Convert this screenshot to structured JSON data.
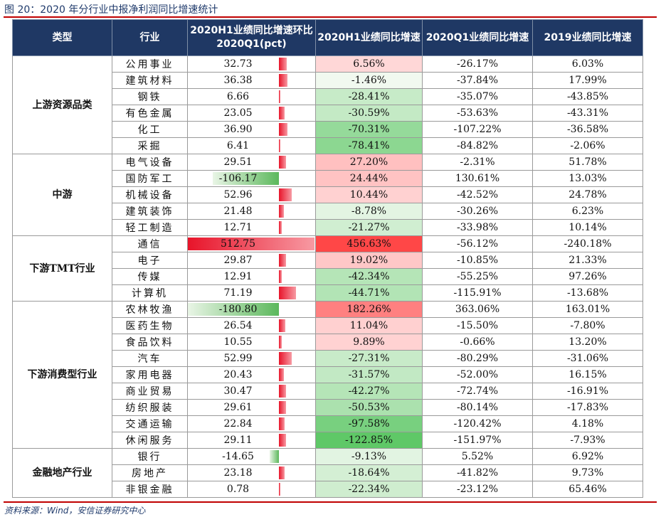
{
  "title": "图 20：2020 年分行业中报净利润同比增速统计",
  "source": "资料来源：Wind，安信证券研究中心",
  "headers": {
    "type": "类型",
    "industry": "行业",
    "qoq": "2020H1业绩同比增速环比2020Q1(pct)",
    "h1": "2020H1业绩同比增速",
    "q1": "2020Q1业绩同比增速",
    "y2019": "2019业绩同比增速"
  },
  "groups": [
    {
      "name": "上游资源品类",
      "rows": [
        {
          "industry": "公用事业",
          "qoq": "32.73",
          "qoq_v": 32.73,
          "h1": "6.56%",
          "h1_v": 6.56,
          "q1": "-26.17%",
          "y2019": "6.03%"
        },
        {
          "industry": "建筑材料",
          "qoq": "36.38",
          "qoq_v": 36.38,
          "h1": "-1.46%",
          "h1_v": -1.46,
          "q1": "-37.84%",
          "y2019": "17.99%"
        },
        {
          "industry": "钢铁",
          "qoq": "6.66",
          "qoq_v": 6.66,
          "h1": "-28.41%",
          "h1_v": -28.41,
          "q1": "-35.07%",
          "y2019": "-43.85%"
        },
        {
          "industry": "有色金属",
          "qoq": "23.05",
          "qoq_v": 23.05,
          "h1": "-30.59%",
          "h1_v": -30.59,
          "q1": "-53.63%",
          "y2019": "-43.31%"
        },
        {
          "industry": "化工",
          "qoq": "36.90",
          "qoq_v": 36.9,
          "h1": "-70.31%",
          "h1_v": -70.31,
          "q1": "-107.22%",
          "y2019": "-36.58%"
        },
        {
          "industry": "采掘",
          "qoq": "6.41",
          "qoq_v": 6.41,
          "h1": "-78.41%",
          "h1_v": -78.41,
          "q1": "-84.82%",
          "y2019": "-2.06%"
        }
      ]
    },
    {
      "name": "中游",
      "rows": [
        {
          "industry": "电气设备",
          "qoq": "29.51",
          "qoq_v": 29.51,
          "h1": "27.20%",
          "h1_v": 27.2,
          "q1": "-2.31%",
          "y2019": "51.78%"
        },
        {
          "industry": "国防军工",
          "qoq": "-106.17",
          "qoq_v": -106.17,
          "h1": "24.44%",
          "h1_v": 24.44,
          "q1": "130.61%",
          "y2019": "13.03%"
        },
        {
          "industry": "机械设备",
          "qoq": "52.96",
          "qoq_v": 52.96,
          "h1": "10.44%",
          "h1_v": 10.44,
          "q1": "-42.52%",
          "y2019": "24.78%"
        },
        {
          "industry": "建筑装饰",
          "qoq": "21.48",
          "qoq_v": 21.48,
          "h1": "-8.78%",
          "h1_v": -8.78,
          "q1": "-30.26%",
          "y2019": "6.23%"
        },
        {
          "industry": "轻工制造",
          "qoq": "12.71",
          "qoq_v": 12.71,
          "h1": "-21.27%",
          "h1_v": -21.27,
          "q1": "-33.98%",
          "y2019": "10.14%"
        }
      ]
    },
    {
      "name": "下游TMT行业",
      "rows": [
        {
          "industry": "通信",
          "qoq": "512.75",
          "qoq_v": 512.75,
          "h1": "456.63%",
          "h1_v": 456.63,
          "q1": "-56.12%",
          "y2019": "-240.18%"
        },
        {
          "industry": "电子",
          "qoq": "29.87",
          "qoq_v": 29.87,
          "h1": "19.02%",
          "h1_v": 19.02,
          "q1": "-10.85%",
          "y2019": "21.33%"
        },
        {
          "industry": "传媒",
          "qoq": "12.91",
          "qoq_v": 12.91,
          "h1": "-42.34%",
          "h1_v": -42.34,
          "q1": "-55.25%",
          "y2019": "97.26%"
        },
        {
          "industry": "计算机",
          "qoq": "71.19",
          "qoq_v": 71.19,
          "h1": "-44.71%",
          "h1_v": -44.71,
          "q1": "-115.91%",
          "y2019": "-13.68%"
        }
      ]
    },
    {
      "name": "下游消费型行业",
      "rows": [
        {
          "industry": "农林牧渔",
          "qoq": "-180.80",
          "qoq_v": -180.8,
          "h1": "182.26%",
          "h1_v": 182.26,
          "q1": "363.06%",
          "y2019": "163.01%"
        },
        {
          "industry": "医药生物",
          "qoq": "26.54",
          "qoq_v": 26.54,
          "h1": "11.04%",
          "h1_v": 11.04,
          "q1": "-15.50%",
          "y2019": "-7.80%"
        },
        {
          "industry": "食品饮料",
          "qoq": "10.55",
          "qoq_v": 10.55,
          "h1": "9.89%",
          "h1_v": 9.89,
          "q1": "-0.66%",
          "y2019": "13.20%"
        },
        {
          "industry": "汽车",
          "qoq": "52.99",
          "qoq_v": 52.99,
          "h1": "-27.31%",
          "h1_v": -27.31,
          "q1": "-80.29%",
          "y2019": "-31.06%"
        },
        {
          "industry": "家用电器",
          "qoq": "20.43",
          "qoq_v": 20.43,
          "h1": "-31.57%",
          "h1_v": -31.57,
          "q1": "-52.00%",
          "y2019": "16.15%"
        },
        {
          "industry": "商业贸易",
          "qoq": "30.47",
          "qoq_v": 30.47,
          "h1": "-42.27%",
          "h1_v": -42.27,
          "q1": "-72.74%",
          "y2019": "-16.91%"
        },
        {
          "industry": "纺织服装",
          "qoq": "29.61",
          "qoq_v": 29.61,
          "h1": "-50.53%",
          "h1_v": -50.53,
          "q1": "-80.14%",
          "y2019": "-17.83%"
        },
        {
          "industry": "交通运输",
          "qoq": "22.84",
          "qoq_v": 22.84,
          "h1": "-97.58%",
          "h1_v": -97.58,
          "q1": "-120.42%",
          "y2019": "4.18%"
        },
        {
          "industry": "休闲服务",
          "qoq": "29.11",
          "qoq_v": 29.11,
          "h1": "-122.85%",
          "h1_v": -122.85,
          "q1": "-151.97%",
          "y2019": "-7.93%"
        }
      ]
    },
    {
      "name": "金融地产行业",
      "rows": [
        {
          "industry": "银行",
          "qoq": "-14.65",
          "qoq_v": -14.65,
          "h1": "-9.13%",
          "h1_v": -9.13,
          "q1": "5.52%",
          "y2019": "6.92%"
        },
        {
          "industry": "房地产",
          "qoq": "23.18",
          "qoq_v": 23.18,
          "h1": "-18.64%",
          "h1_v": -18.64,
          "q1": "-41.82%",
          "y2019": "9.73%"
        },
        {
          "industry": "非银金融",
          "qoq": "0.78",
          "qoq_v": 0.78,
          "h1": "-22.34%",
          "h1_v": -22.34,
          "q1": "-23.12%",
          "y2019": "65.46%"
        }
      ]
    }
  ],
  "colors": {
    "header_bg": "#1f3864",
    "bar_positive": "#e8142a",
    "bar_negative": "#5cb85c",
    "accent_line": "#c00000"
  }
}
